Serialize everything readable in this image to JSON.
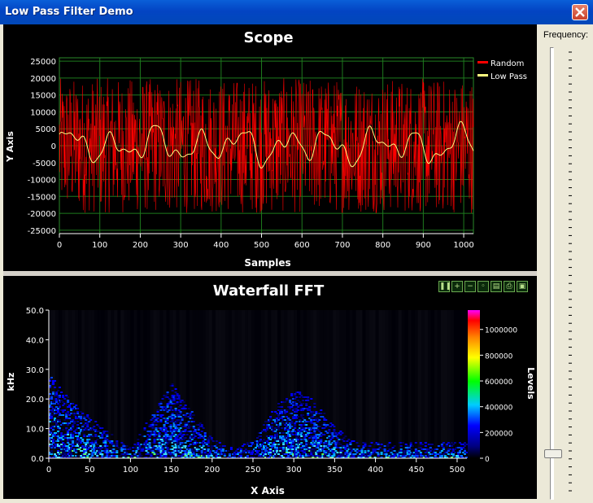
{
  "window": {
    "title": "Low Pass Filter Demo"
  },
  "scope": {
    "title": "Scope",
    "xlabel": "Samples",
    "ylabel": "Y Axis",
    "yticks": [
      "25000",
      "20000",
      "15000",
      "10000",
      "5000",
      "0",
      "-5000",
      "-10000",
      "-15000",
      "-20000",
      "-25000"
    ],
    "xticks": [
      "0",
      "100",
      "200",
      "300",
      "400",
      "500",
      "600",
      "700",
      "800",
      "900",
      "1000"
    ],
    "legend": [
      "Random",
      "Low Pass"
    ]
  },
  "fft": {
    "title": "Waterfall FFT",
    "xlabel": "X Axis",
    "ylabel": "kHz",
    "cbar_label": "Levels",
    "yticks": [
      "50.0",
      "40.0",
      "30.0",
      "20.0",
      "10.0",
      "0.0"
    ],
    "xticks": [
      "0",
      "50",
      "100",
      "150",
      "200",
      "250",
      "300",
      "350",
      "400",
      "450",
      "500"
    ],
    "cbar_ticks": [
      "1000000",
      "800000",
      "600000",
      "400000",
      "200000",
      "0"
    ]
  },
  "slider": {
    "label": "Frequency:",
    "value_fraction": 0.04
  },
  "toolbar": [
    "pause-icon",
    "zoom-in-icon",
    "zoom-out-icon",
    "zoom-reset-icon",
    "copy-icon",
    "print-icon",
    "save-icon"
  ],
  "chart_data": [
    {
      "type": "line",
      "title": "Scope",
      "xlabel": "Samples",
      "ylabel": "Y Axis",
      "xlim": [
        0,
        1024
      ],
      "ylim": [
        -26000,
        26000
      ],
      "grid": true,
      "legend": "top-right",
      "series": [
        {
          "name": "Random",
          "color": "#FF0000",
          "amplitude": 20000
        },
        {
          "name": "Low Pass",
          "color": "#FFFF80",
          "amplitude": 6000
        }
      ]
    },
    {
      "type": "heatmap",
      "title": "Waterfall FFT",
      "xlabel": "X Axis",
      "ylabel": "kHz",
      "xlim": [
        0,
        512
      ],
      "ylim": [
        0,
        50
      ],
      "zlim": [
        0,
        1150000
      ],
      "envelope": {
        "x": [
          0,
          25,
          50,
          75,
          100,
          125,
          150,
          175,
          200,
          225,
          250,
          275,
          300,
          325,
          350,
          375,
          400,
          450,
          512
        ],
        "kHz": [
          28,
          20,
          14,
          8,
          3,
          15,
          25,
          15,
          6,
          3,
          6,
          17,
          23,
          19,
          10,
          5,
          5,
          5,
          5
        ]
      }
    }
  ]
}
